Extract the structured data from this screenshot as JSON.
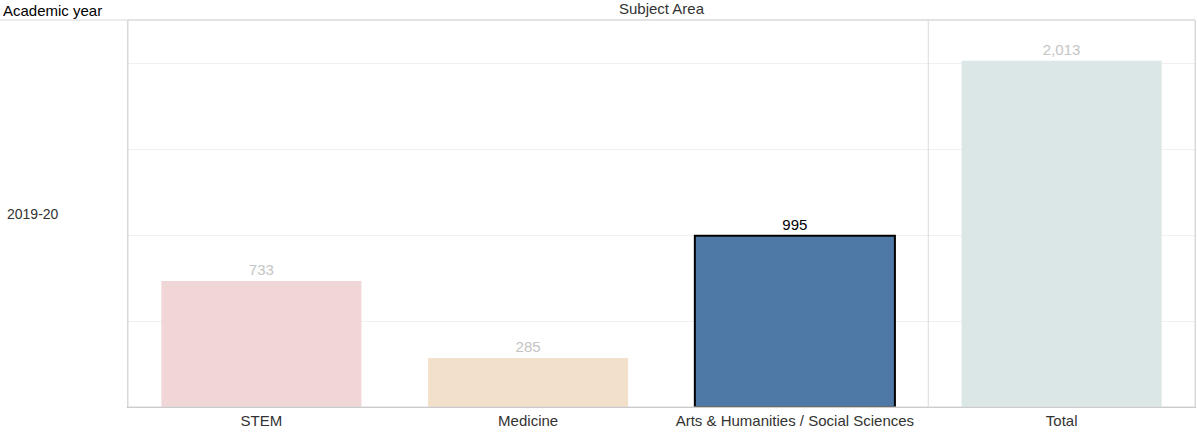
{
  "chart_data": {
    "type": "bar",
    "title": "Subject Area",
    "annotations": [
      {
        "text": "Academic year"
      },
      {
        "text": "2019-20"
      }
    ],
    "categories": [
      "STEM",
      "Medicine",
      "Arts & Humanities / Social Sciences",
      "Total"
    ],
    "values": [
      733,
      285,
      995,
      2013
    ],
    "value_labels": [
      "733",
      "285",
      "995",
      "2,013"
    ],
    "colors": [
      "#f0d6d7",
      "#f2e0ca",
      "#4e79a7",
      "#dbe7e6"
    ],
    "ylim": [
      0,
      2250
    ],
    "yticks": [
      0,
      500,
      1000,
      1500,
      2000
    ],
    "grid": true,
    "data_labels": true,
    "tick_labels": "x"
  }
}
